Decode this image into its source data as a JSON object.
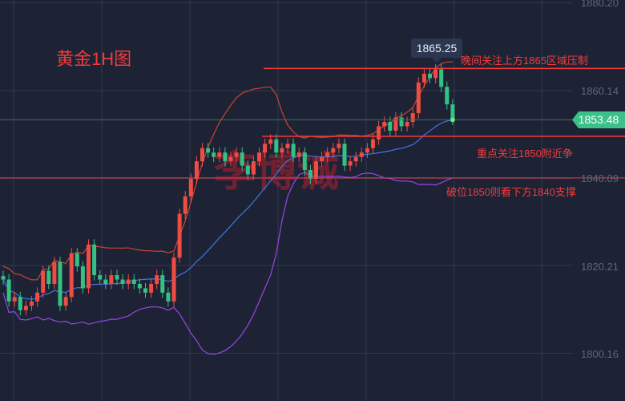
{
  "title": "黄金1H图",
  "watermark": "李博诚",
  "tooltip": "1865.25",
  "current_price": "1853.48",
  "colors": {
    "up": "#ef4c44",
    "down": "#35c184",
    "upper_band": "#c9452f",
    "mid_band": "#3f76e6",
    "lower_band": "#9a44e8",
    "levels": "#f23b3b",
    "background": "#1d2335"
  },
  "notes": [
    {
      "text": "晚间关注上方1865区域压制",
      "level": 1865.2
    },
    {
      "text": "重点关注1850附近争",
      "level": 1849.7
    },
    {
      "text": "破位1850则看下方1840支撑",
      "level": 1840.2
    }
  ],
  "chart_data": {
    "type": "candlestick",
    "y_ticks": [
      "1880.20",
      "1860.14",
      "1840.09",
      "1820.21",
      "1800.16"
    ],
    "ylim": [
      1792,
      1881
    ],
    "grid": true,
    "closes": [
      1817,
      1812,
      1813,
      1810,
      1811,
      1812,
      1814,
      1819,
      1816,
      1821,
      1811,
      1813,
      1823,
      1820,
      1815,
      1825,
      1818,
      1817,
      1816,
      1818,
      1817,
      1816,
      1817,
      1816,
      1815,
      1814,
      1816,
      1818,
      1814,
      1812,
      1822,
      1832,
      1836,
      1840,
      1844,
      1847,
      1846,
      1845,
      1846,
      1844,
      1845,
      1846,
      1843,
      1841,
      1844,
      1846,
      1848,
      1849,
      1846,
      1847,
      1848,
      1845,
      1846,
      1842,
      1840,
      1844,
      1845,
      1846,
      1847,
      1848,
      1843,
      1844,
      1845,
      1846,
      1847,
      1849,
      1852,
      1853,
      1851,
      1854,
      1852,
      1853,
      1855,
      1862,
      1864,
      1863,
      1865,
      1861,
      1857,
      1853.48
    ],
    "horizontal_levels": [
      1865.2,
      1849.7,
      1840.2
    ],
    "indicator": "Bollinger Bands"
  }
}
